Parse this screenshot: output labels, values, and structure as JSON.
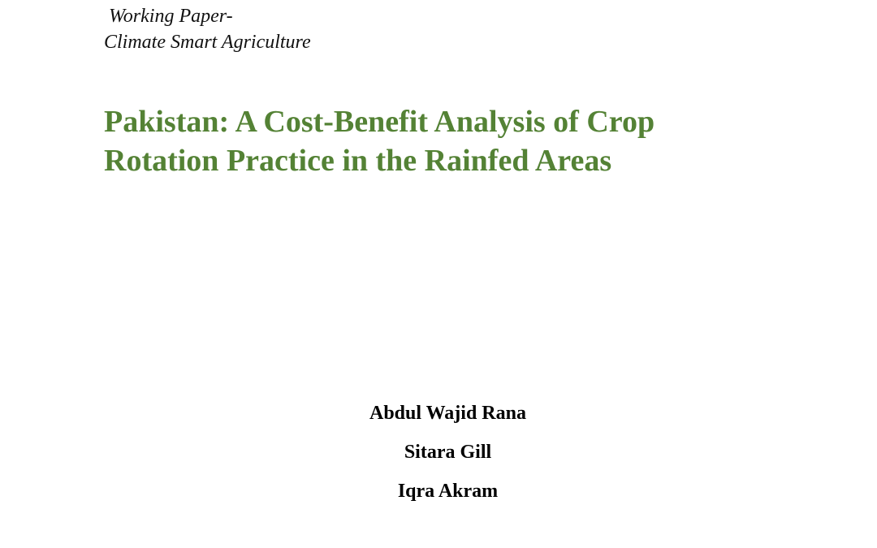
{
  "header": {
    "series": "Working Paper-",
    "subseries": "Climate Smart Agriculture"
  },
  "title": {
    "lines": [
      "Pakistan: A Cost-Benefit Analysis of Crop",
      "Rotation Practice in the Rainfed Areas"
    ]
  },
  "authors": [
    "Abdul Wajid Rana",
    "Sitara Gill",
    "Iqra Akram"
  ]
}
